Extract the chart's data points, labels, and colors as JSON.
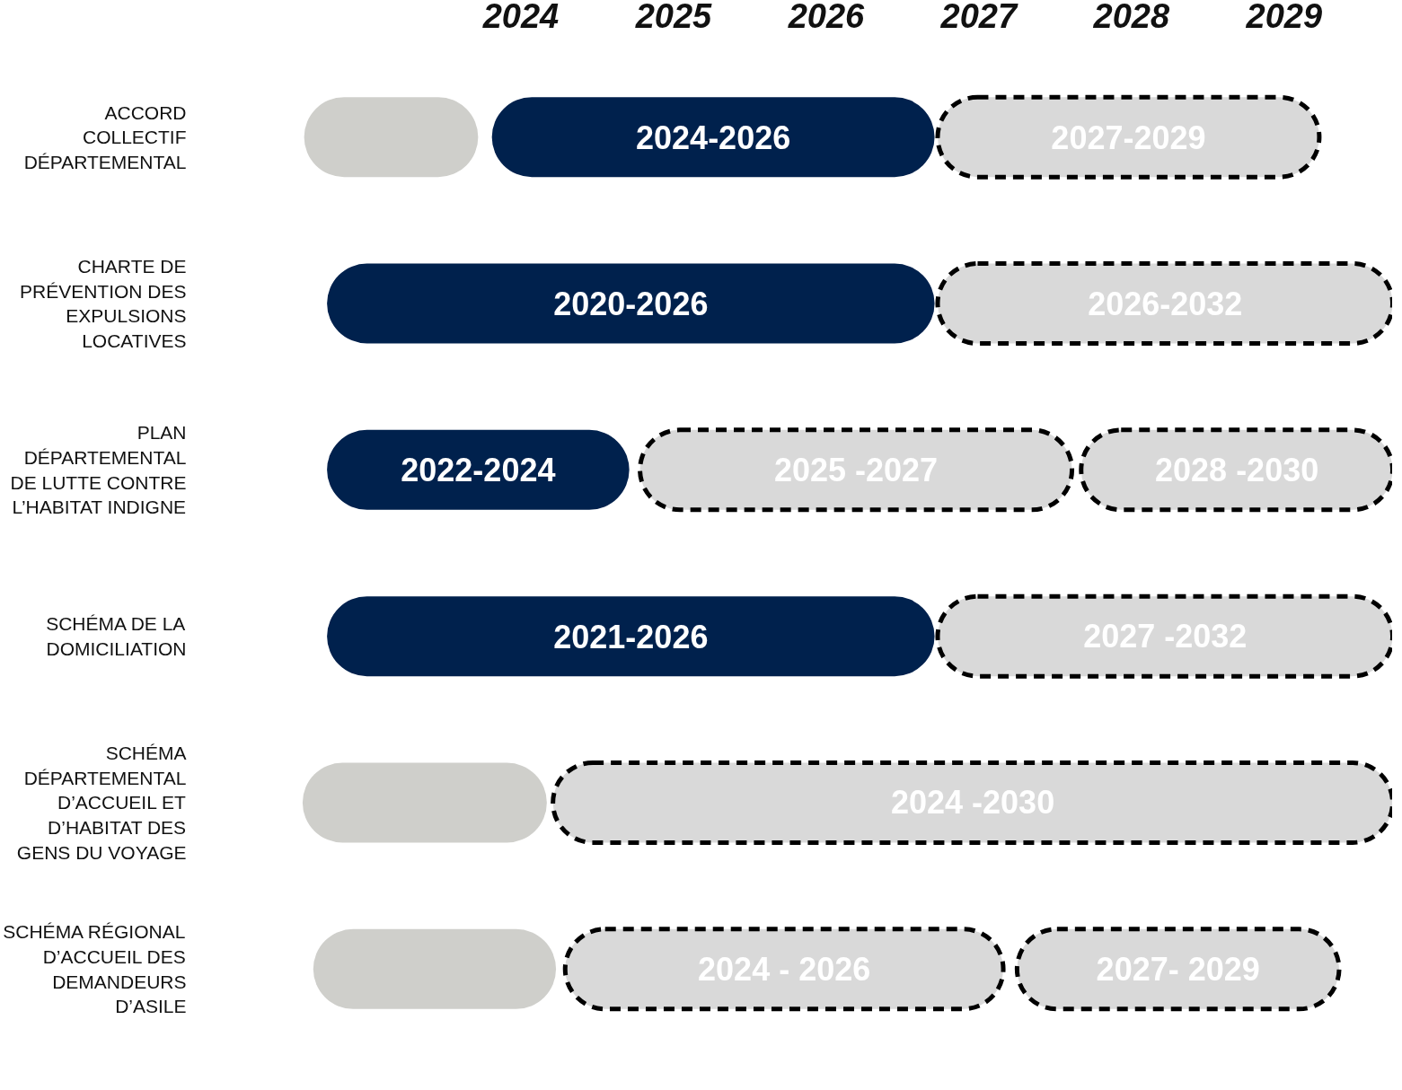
{
  "chart_data": {
    "type": "bar",
    "orientation": "horizontal",
    "grid": false,
    "categories": [
      "ACCORD\nCOLLECTIF\nDÉPARTEMENTAL",
      "CHARTE DE\nPRÉVENTION DES\nEXPULSIONS\nLOCATIVES",
      "PLAN\nDÉPARTEMENTAL\nDE LUTTE CONTRE\nL’HABITAT INDIGNE",
      "SCHÉMA DE LA\nDOMICILIATION",
      "SCHÉMA\nDÉPARTEMENTAL\nD’ACCUEIL ET\nD’HABITAT DES\nGENS DU VOYAGE",
      "SCHÉMA RÉGIONAL\nD’ACCUEIL DES\nDEMANDEURS\nD’ASILE"
    ],
    "xlim": [
      2022.55,
      2029.71
    ],
    "xticks": [
      2024,
      2025,
      2026,
      2027,
      2028,
      2029
    ],
    "series": [
      {
        "color": "#cfcfcb",
        "line_style": "solid",
        "base": [
          2022.58,
          null,
          null,
          null,
          2022.57,
          2022.64
        ],
        "values": [
          1.14,
          null,
          null,
          null,
          1.6,
          1.59
        ]
      },
      {
        "color": "#00214d",
        "line_style": "solid",
        "base": [
          2023.81,
          2022.73,
          2022.73,
          2022.73,
          null,
          null
        ],
        "values": [
          2.9,
          3.98,
          1.98,
          3.98,
          null,
          null
        ]
      },
      {
        "color": "#d9d9d9",
        "line_style": "dashed",
        "base": [
          2026.73,
          2026.73,
          2024.78,
          2026.73,
          2024.21,
          2024.29
        ],
        "values": [
          2.5,
          2.98,
          2.83,
          2.98,
          5.5,
          2.87
        ]
      },
      {
        "color": "#d9d9d9",
        "line_style": "dashed",
        "base": [
          null,
          null,
          2027.67,
          null,
          null,
          2027.25
        ],
        "values": [
          null,
          null,
          2.04,
          null,
          null,
          2.11
        ]
      }
    ],
    "annotations": [
      "2024-2026",
      "2027-2029",
      "2020-2026",
      "2026-2032",
      "2022-2024",
      "2025 -2027",
      "2028 -2030",
      "2021-2026",
      "2027 -2032",
      "2024 -2030",
      "2024 - 2026",
      "2027- 2029"
    ]
  }
}
